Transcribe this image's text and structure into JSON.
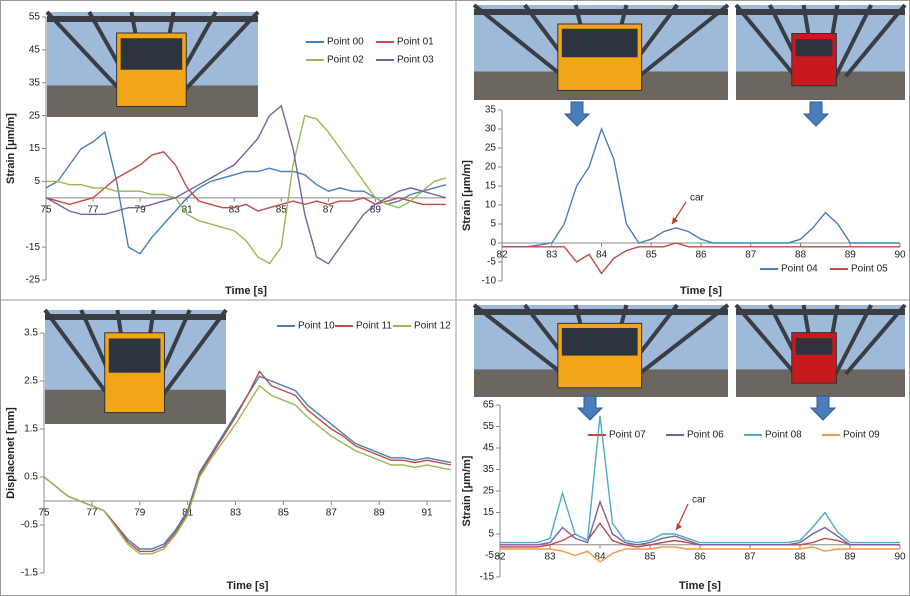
{
  "chart_data": [
    {
      "type": "line",
      "x_label": "Time [s]",
      "y_label": "Strain [μm/m]",
      "legend": "upper right",
      "xlim": [
        75,
        92
      ],
      "xticks": [
        75,
        77,
        79,
        81,
        83,
        85,
        87,
        89
      ],
      "ylim": [
        -25,
        55
      ],
      "yticks": [
        55,
        45,
        35,
        25,
        15,
        5,
        -15,
        -25
      ],
      "x": [
        75,
        75.5,
        76,
        76.5,
        77,
        77.5,
        78,
        78.5,
        79,
        79.5,
        80,
        80.5,
        81,
        81.5,
        82,
        82.5,
        83,
        83.5,
        84,
        84.5,
        85,
        85.5,
        86,
        86.5,
        87,
        87.5,
        88,
        88.5,
        89,
        89.5,
        90,
        90.5,
        91,
        91.5,
        92
      ],
      "series": [
        {
          "name": "Point 00",
          "color": "#4a7ebb",
          "values": [
            3,
            5,
            10,
            15,
            17,
            20,
            5,
            -15,
            -17,
            -12,
            -8,
            -4,
            0,
            3,
            5,
            6,
            7,
            8,
            8,
            9,
            8,
            8,
            7,
            4,
            2,
            3,
            2,
            2,
            0,
            -2,
            -1,
            1,
            2,
            3,
            4
          ]
        },
        {
          "name": "Point 01",
          "color": "#be4b48",
          "values": [
            0,
            -1,
            -2,
            -1,
            0,
            3,
            6,
            8,
            10,
            13,
            14,
            10,
            3,
            -1,
            -2,
            -3,
            -3,
            -2,
            -4,
            -3,
            -2,
            -1,
            -2,
            -1,
            -2,
            -1,
            -1,
            0,
            -2,
            -1,
            0,
            -1,
            -2,
            -2,
            -2
          ]
        },
        {
          "name": "Point 02",
          "color": "#98b954",
          "values": [
            5,
            5,
            4,
            4,
            3,
            3,
            2,
            2,
            2,
            1,
            1,
            0,
            -5,
            -7,
            -8,
            -9,
            -10,
            -13,
            -18,
            -20,
            -15,
            10,
            25,
            24,
            20,
            15,
            10,
            5,
            0,
            -2,
            -3,
            -1,
            2,
            5,
            6
          ]
        },
        {
          "name": "Point 03",
          "color": "#7d60a0",
          "values": [
            0,
            -2,
            -4,
            -5,
            -5,
            -5,
            -4,
            -3,
            -3,
            -2,
            -1,
            0,
            2,
            4,
            6,
            8,
            10,
            14,
            18,
            25,
            28,
            15,
            -5,
            -18,
            -20,
            -15,
            -10,
            -5,
            -2,
            0,
            2,
            3,
            2,
            1,
            0
          ]
        }
      ]
    },
    {
      "type": "line",
      "x_label": "Time [s]",
      "y_label": "Strain [μm/m]",
      "legend": "lower right",
      "annotation": "car",
      "xlim": [
        82,
        90
      ],
      "xticks": [
        82,
        83,
        84,
        85,
        86,
        87,
        88,
        89,
        90
      ],
      "ylim": [
        -10,
        35
      ],
      "yticks": [
        35,
        30,
        25,
        20,
        15,
        10,
        5,
        0,
        -5,
        -10
      ],
      "x": [
        82,
        82.25,
        82.5,
        82.75,
        83,
        83.25,
        83.5,
        83.75,
        84,
        84.25,
        84.5,
        84.75,
        85,
        85.25,
        85.5,
        85.75,
        86,
        86.25,
        86.5,
        86.75,
        87,
        87.25,
        87.5,
        87.75,
        88,
        88.25,
        88.5,
        88.75,
        89,
        89.25,
        89.5,
        89.75,
        90
      ],
      "series": [
        {
          "name": "Point 04",
          "color": "#4a7ebb",
          "values": [
            -1,
            -1,
            -1,
            -0.5,
            0,
            5,
            15,
            20,
            30,
            22,
            5,
            0,
            1,
            3,
            4,
            3,
            1,
            0,
            0,
            0,
            0,
            0,
            0,
            0,
            1,
            4,
            8,
            5,
            0,
            0,
            0,
            0,
            0
          ]
        },
        {
          "name": "Point 05",
          "color": "#be4b48",
          "values": [
            -1,
            -1,
            -1,
            -1,
            -1,
            -1,
            -5,
            -3,
            -8,
            -4,
            -2,
            -1,
            -1,
            -1,
            0,
            -1,
            -1,
            -1,
            -1,
            -1,
            -1,
            -1,
            -1,
            -1,
            -1,
            -1,
            -1,
            -1,
            -1,
            -1,
            -1,
            -1,
            -1
          ]
        }
      ]
    },
    {
      "type": "line",
      "x_label": "Time [s]",
      "y_label": "Displacenet [mm]",
      "legend": "upper right",
      "xlim": [
        75,
        92
      ],
      "xticks": [
        75,
        77,
        79,
        81,
        83,
        85,
        87,
        89,
        91
      ],
      "ylim": [
        -1.5,
        3.5
      ],
      "yticks": [
        3.5,
        2.5,
        1.5,
        0.5,
        -0.5,
        -1.5
      ],
      "x": [
        75,
        75.5,
        76,
        76.5,
        77,
        77.5,
        78,
        78.5,
        79,
        79.5,
        80,
        80.5,
        81,
        81.5,
        82,
        82.5,
        83,
        83.5,
        84,
        84.5,
        85,
        85.5,
        86,
        86.5,
        87,
        87.5,
        88,
        88.5,
        89,
        89.5,
        90,
        90.5,
        91,
        91.5,
        92
      ],
      "series": [
        {
          "name": "Point 10",
          "color": "#4a7ebb",
          "values": [
            0.5,
            0.3,
            0.1,
            0,
            -0.1,
            -0.2,
            -0.5,
            -0.8,
            -1.0,
            -1.0,
            -0.9,
            -0.6,
            -0.2,
            0.6,
            1.0,
            1.4,
            1.8,
            2.2,
            2.6,
            2.5,
            2.4,
            2.3,
            2.0,
            1.8,
            1.6,
            1.4,
            1.2,
            1.1,
            1.0,
            0.9,
            0.9,
            0.85,
            0.9,
            0.85,
            0.8
          ]
        },
        {
          "name": "Point 11",
          "color": "#be4b48",
          "values": [
            0.5,
            0.3,
            0.1,
            0,
            -0.1,
            -0.2,
            -0.5,
            -0.85,
            -1.05,
            -1.05,
            -0.95,
            -0.65,
            -0.25,
            0.55,
            0.95,
            1.35,
            1.75,
            2.2,
            2.7,
            2.4,
            2.3,
            2.2,
            1.9,
            1.7,
            1.5,
            1.35,
            1.15,
            1.05,
            0.95,
            0.85,
            0.85,
            0.8,
            0.85,
            0.8,
            0.75
          ]
        },
        {
          "name": "Point 12",
          "color": "#98b954",
          "values": [
            0.5,
            0.3,
            0.1,
            0,
            -0.1,
            -0.2,
            -0.55,
            -0.9,
            -1.1,
            -1.1,
            -1.0,
            -0.7,
            -0.3,
            0.5,
            0.9,
            1.25,
            1.6,
            2.0,
            2.4,
            2.2,
            2.1,
            2.0,
            1.75,
            1.55,
            1.35,
            1.2,
            1.05,
            0.95,
            0.85,
            0.75,
            0.75,
            0.7,
            0.75,
            0.7,
            0.65
          ]
        }
      ]
    },
    {
      "type": "line",
      "x_label": "Time [s]",
      "y_label": "Strain [μm/m]",
      "legend": "upper right",
      "annotation": "car",
      "xlim": [
        82,
        90
      ],
      "xticks": [
        82,
        83,
        84,
        85,
        86,
        87,
        88,
        89,
        90
      ],
      "ylim": [
        -15,
        65
      ],
      "yticks": [
        65,
        55,
        45,
        35,
        25,
        15,
        5,
        -5,
        -15
      ],
      "x": [
        82,
        82.25,
        82.5,
        82.75,
        83,
        83.25,
        83.5,
        83.75,
        84,
        84.25,
        84.5,
        84.75,
        85,
        85.25,
        85.5,
        85.75,
        86,
        86.25,
        86.5,
        86.75,
        87,
        87.25,
        87.5,
        87.75,
        88,
        88.25,
        88.5,
        88.75,
        89,
        89.25,
        89.5,
        89.75,
        90
      ],
      "series": [
        {
          "name": "Point 07",
          "color": "#be4b48",
          "values": [
            -1,
            -1,
            -1,
            -1,
            0,
            2,
            5,
            2,
            10,
            2,
            0,
            -1,
            0,
            1,
            2,
            1,
            0,
            0,
            0,
            0,
            0,
            0,
            0,
            0,
            0,
            1,
            3,
            2,
            0,
            0,
            0,
            0,
            0
          ]
        },
        {
          "name": "Point 06",
          "color": "#7d60a0",
          "values": [
            0,
            0,
            0,
            0,
            1,
            8,
            3,
            1,
            20,
            5,
            1,
            0,
            1,
            3,
            4,
            2,
            0,
            0,
            0,
            0,
            0,
            0,
            0,
            0,
            1,
            5,
            8,
            4,
            0,
            0,
            0,
            0,
            0
          ]
        },
        {
          "name": "Point 08",
          "color": "#4bacc6",
          "values": [
            1,
            1,
            1,
            1,
            3,
            24,
            5,
            2,
            60,
            10,
            2,
            1,
            2,
            5,
            5,
            3,
            1,
            1,
            1,
            1,
            1,
            1,
            1,
            1,
            2,
            8,
            15,
            6,
            1,
            1,
            1,
            1,
            1
          ]
        },
        {
          "name": "Point 09",
          "color": "#f79646",
          "values": [
            -2,
            -2,
            -2,
            -2,
            -2,
            -3,
            -5,
            -3,
            -8,
            -4,
            -2,
            -2,
            -2,
            -1,
            -1,
            -2,
            -2,
            -2,
            -2,
            -2,
            -2,
            -2,
            -2,
            -2,
            -2,
            -1,
            -3,
            -2,
            -2,
            -2,
            -2,
            -2,
            -2
          ]
        }
      ]
    }
  ]
}
